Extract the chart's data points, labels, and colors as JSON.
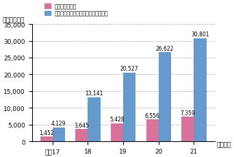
{
  "categories": [
    "平成17",
    "18",
    "19",
    "20",
    "21"
  ],
  "series1_label": "団体数（団体）",
  "series2_label": "青色回転灯を装備した自動車数（台）",
  "series1_values": [
    1452,
    3645,
    5428,
    6556,
    7359
  ],
  "series2_values": [
    4129,
    13141,
    20527,
    26622,
    30801
  ],
  "series1_color": "#d9729a",
  "series2_color": "#6699cc",
  "ylabel": "（団体・台）",
  "xlabel_end": "（年末）",
  "ylim": [
    0,
    35000
  ],
  "yticks": [
    0,
    5000,
    10000,
    15000,
    20000,
    25000,
    30000,
    35000
  ],
  "tick_fontsize": 6.5,
  "label_fontsize": 5.5,
  "anno_fontsize": 5.5,
  "bar_width": 0.35,
  "background_color": "#ffffff",
  "plot_bg_color": "#ffffff"
}
